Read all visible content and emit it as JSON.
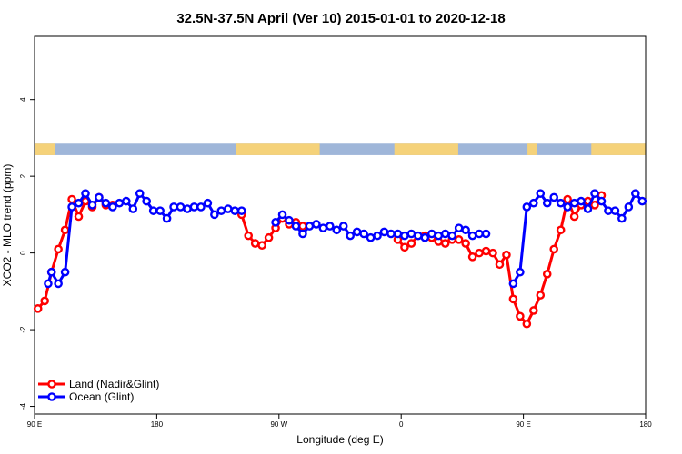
{
  "chart_data": {
    "type": "line",
    "title": "32.5N-37.5N April (Ver 10)   2015-01-01 to 2020-12-18",
    "xlabel": "Longitude (deg E)",
    "ylabel": "XCO2 - MLO trend (ppm)",
    "x_ticks": [
      {
        "value": 90,
        "label": "90 E"
      },
      {
        "value": 180,
        "label": "180"
      },
      {
        "value": 270,
        "label": "90 W"
      },
      {
        "value": 360,
        "label": "0"
      },
      {
        "value": 450,
        "label": "90 E"
      },
      {
        "value": 540,
        "label": "180"
      }
    ],
    "y_ticks": [
      {
        "value": -4,
        "label": "-4"
      },
      {
        "value": -2,
        "label": "-2"
      },
      {
        "value": 0,
        "label": "0"
      },
      {
        "value": 2,
        "label": "2"
      },
      {
        "value": 4,
        "label": "4"
      }
    ],
    "xlim": [
      90,
      540
    ],
    "ylim": [
      -4.2,
      5.65
    ],
    "land_ocean_band_ylim": [
      2.55,
      2.85
    ],
    "grid": false,
    "legend_position": "bottom-left",
    "colors": {
      "land": "#ff0000",
      "ocean": "#0000ff",
      "map_land": "#f5d27a",
      "map_ocean": "#9fb6d9"
    },
    "map_land_ranges": [
      [
        90,
        105
      ],
      [
        238,
        300
      ],
      [
        355,
        402
      ],
      [
        453,
        460
      ],
      [
        500,
        540
      ]
    ],
    "series": [
      {
        "name": "Land (Nadir&Glint)",
        "color": "#ff0000",
        "x": [
          92.5,
          97.5,
          102.5,
          107.5,
          112.5,
          117.5,
          122.5,
          127.5,
          132.5,
          137.5,
          142.5,
          147.5,
          242.5,
          247.5,
          252.5,
          257.5,
          262.5,
          267.5,
          272.5,
          277.5,
          282.5,
          287.5,
          357.5,
          362.5,
          367.5,
          372.5,
          377.5,
          382.5,
          387.5,
          392.5,
          397.5,
          402.5,
          407.5,
          412.5,
          417.5,
          422.5,
          427.5,
          432.5,
          437.5,
          442.5,
          447.5,
          452.5,
          457.5,
          462.5,
          467.5,
          472.5,
          477.5,
          482.5,
          487.5,
          492.5,
          497.5,
          502.5,
          507.5
        ],
        "y": [
          -1.45,
          -1.25,
          -0.5,
          0.1,
          0.6,
          1.4,
          0.95,
          1.35,
          1.2,
          1.45,
          1.25,
          1.25,
          1.0,
          0.45,
          0.25,
          0.2,
          0.4,
          0.65,
          0.9,
          0.75,
          0.8,
          0.7,
          0.35,
          0.15,
          0.25,
          0.45,
          0.45,
          0.4,
          0.3,
          0.25,
          0.35,
          0.35,
          0.25,
          -0.1,
          0.0,
          0.05,
          0.0,
          -0.3,
          -0.05,
          -1.2,
          -1.65,
          -1.85,
          -1.5,
          -1.1,
          -0.55,
          0.1,
          0.6,
          1.4,
          0.95,
          1.25,
          1.35,
          1.25,
          1.5
        ]
      },
      {
        "name": "Ocean (Glint)",
        "color": "#0000ff",
        "x": [
          100,
          102.5,
          107.5,
          112.5,
          117.5,
          122.5,
          127.5,
          132.5,
          137.5,
          142.5,
          147.5,
          152.5,
          157.5,
          162.5,
          167.5,
          172.5,
          177.5,
          182.5,
          187.5,
          192.5,
          197.5,
          202.5,
          207.5,
          212.5,
          217.5,
          222.5,
          227.5,
          232.5,
          237.5,
          242.5,
          267.5,
          272.5,
          277.5,
          282.5,
          287.5,
          292.5,
          297.5,
          302.5,
          307.5,
          312.5,
          317.5,
          322.5,
          327.5,
          332.5,
          337.5,
          342.5,
          347.5,
          352.5,
          357.5,
          362.5,
          367.5,
          372.5,
          377.5,
          382.5,
          387.5,
          392.5,
          397.5,
          402.5,
          407.5,
          412.5,
          417.5,
          422.5,
          442.5,
          447.5,
          452.5,
          457.5,
          462.5,
          467.5,
          472.5,
          477.5,
          482.5,
          487.5,
          492.5,
          497.5,
          502.5,
          507.5,
          512.5,
          517.5,
          522.5,
          527.5,
          532.5,
          537.5
        ],
        "y": [
          -0.8,
          -0.5,
          -0.8,
          -0.5,
          1.2,
          1.3,
          1.55,
          1.25,
          1.45,
          1.3,
          1.2,
          1.3,
          1.35,
          1.15,
          1.55,
          1.35,
          1.1,
          1.1,
          0.9,
          1.2,
          1.2,
          1.15,
          1.2,
          1.2,
          1.3,
          1.0,
          1.1,
          1.15,
          1.1,
          1.1,
          0.8,
          1.0,
          0.85,
          0.7,
          0.5,
          0.7,
          0.75,
          0.65,
          0.7,
          0.6,
          0.7,
          0.45,
          0.55,
          0.5,
          0.4,
          0.45,
          0.55,
          0.5,
          0.5,
          0.45,
          0.5,
          0.45,
          0.4,
          0.5,
          0.45,
          0.5,
          0.45,
          0.65,
          0.6,
          0.45,
          0.5,
          0.5,
          -0.8,
          -0.5,
          1.2,
          1.3,
          1.55,
          1.3,
          1.45,
          1.3,
          1.2,
          1.3,
          1.35,
          1.15,
          1.55,
          1.35,
          1.1,
          1.1,
          0.9,
          1.2,
          1.55,
          1.35
        ]
      }
    ]
  }
}
